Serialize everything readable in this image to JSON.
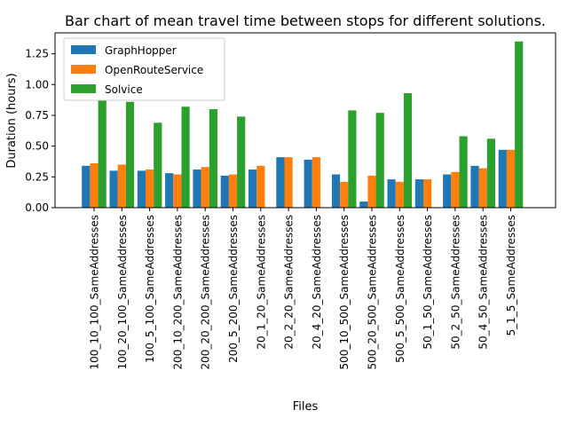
{
  "chart_data": {
    "type": "bar",
    "title": "Bar chart of mean travel time between stops for different solutions.",
    "xlabel": "Files",
    "ylabel": "Duration (hours)",
    "ylim": [
      0,
      1.42
    ],
    "yticks": [
      "0.00",
      "0.25",
      "0.50",
      "0.75",
      "1.00",
      "1.25"
    ],
    "grid": false,
    "legend_position": "top-left",
    "categories": [
      "100_10_100_SameAddresses",
      "100_20_100_SameAddresses",
      "100_5_100_SameAddresses",
      "200_10_200_SameAddresses",
      "200_20_200_SameAddresses",
      "200_5_200_SameAddresses",
      "20_1_20_SameAddresses",
      "20_2_20_SameAddresses",
      "20_4_20_SameAddresses",
      "500_10_500_SameAddresses",
      "500_20_500_SameAddresses",
      "500_5_500_SameAddresses",
      "50_1_50_SameAddresses",
      "50_2_50_SameAddresses",
      "50_4_50_SameAddresses",
      "5_1_5_SameAddresses"
    ],
    "series": [
      {
        "name": "GraphHopper",
        "color": "#1f77b4",
        "values": [
          0.34,
          0.3,
          0.3,
          0.28,
          0.31,
          0.26,
          0.31,
          0.41,
          0.39,
          0.27,
          0.05,
          0.23,
          0.23,
          0.27,
          0.34,
          0.47
        ]
      },
      {
        "name": "OpenRouteService",
        "color": "#ff7f0e",
        "values": [
          0.36,
          0.35,
          0.31,
          0.27,
          0.33,
          0.27,
          0.34,
          0.41,
          0.41,
          0.21,
          0.26,
          0.21,
          0.23,
          0.29,
          0.32,
          0.47
        ]
      },
      {
        "name": "Solvice",
        "color": "#2ca02c",
        "values": [
          0.87,
          0.86,
          0.69,
          0.82,
          0.8,
          0.74,
          null,
          null,
          null,
          0.79,
          0.77,
          0.93,
          null,
          0.58,
          0.56,
          1.35
        ]
      }
    ]
  }
}
